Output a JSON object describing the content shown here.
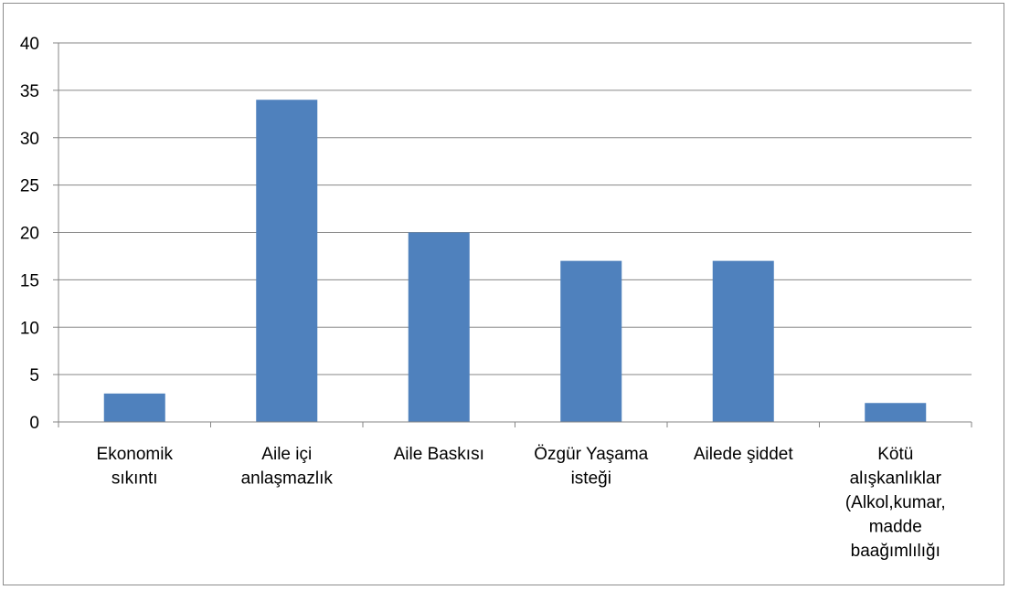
{
  "chart_data": {
    "type": "bar",
    "categories": [
      [
        "Ekonomik",
        "sıkıntı"
      ],
      [
        "Aile içi",
        "anlaşmazlık"
      ],
      [
        "Aile Baskısı"
      ],
      [
        "Özgür Yaşama",
        "isteği"
      ],
      [
        "Ailede şiddet"
      ],
      [
        "Kötü",
        "alışkanlıklar",
        "(Alkol,kumar,",
        "madde",
        "baağımlılığı"
      ]
    ],
    "series": [
      {
        "values": [
          3,
          34,
          20,
          17,
          17,
          2
        ]
      }
    ],
    "y_ticks": [
      "0",
      "5",
      "10",
      "15",
      "20",
      "25",
      "30",
      "35",
      "40"
    ],
    "ylim": [
      0,
      40
    ],
    "title": "",
    "xlabel": "",
    "ylabel": "",
    "grid": true,
    "legend": "none",
    "colors": {
      "bar": "#4F81BD",
      "gridline": "#868686",
      "axis": "#868686",
      "frame": "#8c8c8c"
    }
  }
}
